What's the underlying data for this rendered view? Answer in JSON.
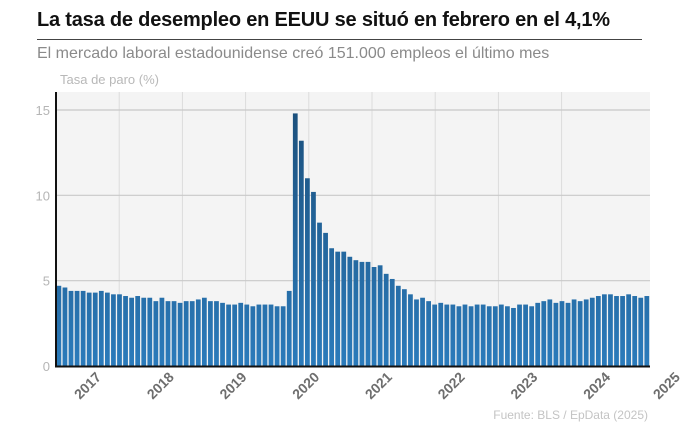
{
  "header": {
    "title": "La tasa de desempleo en EEUU se situó en febrero en el 4,1%",
    "subtitle": "El mercado laboral estadounidense creó 151.000 empleos el último mes",
    "y_axis_label": "Tasa de paro (%)"
  },
  "footer": {
    "source": "Fuente: BLS / EpData (2025)"
  },
  "colors": {
    "bar_top": "#1b4d78",
    "bar_bottom": "#2b7bbb",
    "plot_bg": "#f4f4f4",
    "grid": "#c8c8c8",
    "axis": "#111111"
  },
  "chart_data": {
    "type": "bar",
    "title": "La tasa de desempleo en EEUU se situó en febrero en el 4,1%",
    "subtitle": "El mercado laboral estadounidense creó 151.000 empleos el último mes",
    "xlabel": "",
    "ylabel": "Tasa de paro (%)",
    "ylim": [
      0,
      16
    ],
    "yticks": [
      0,
      5,
      10,
      15
    ],
    "grid": true,
    "legend": "none",
    "x_tick_labels": [
      "2017",
      "2018",
      "2019",
      "2020",
      "2021",
      "2022",
      "2023",
      "2024",
      "2025"
    ],
    "start": "2017-01",
    "end": "2025-02",
    "frequency": "monthly",
    "values": [
      4.7,
      4.6,
      4.4,
      4.4,
      4.4,
      4.3,
      4.3,
      4.4,
      4.3,
      4.2,
      4.2,
      4.1,
      4.0,
      4.1,
      4.0,
      4.0,
      3.8,
      4.0,
      3.8,
      3.8,
      3.7,
      3.8,
      3.8,
      3.9,
      4.0,
      3.8,
      3.8,
      3.7,
      3.6,
      3.6,
      3.7,
      3.6,
      3.5,
      3.6,
      3.6,
      3.6,
      3.5,
      3.5,
      4.4,
      14.8,
      13.2,
      11.0,
      10.2,
      8.4,
      7.8,
      6.9,
      6.7,
      6.7,
      6.4,
      6.2,
      6.1,
      6.1,
      5.8,
      5.9,
      5.4,
      5.1,
      4.7,
      4.5,
      4.2,
      3.9,
      4.0,
      3.8,
      3.6,
      3.7,
      3.6,
      3.6,
      3.5,
      3.6,
      3.5,
      3.6,
      3.6,
      3.5,
      3.5,
      3.6,
      3.5,
      3.4,
      3.6,
      3.6,
      3.5,
      3.7,
      3.8,
      3.9,
      3.7,
      3.8,
      3.7,
      3.9,
      3.8,
      3.9,
      4.0,
      4.1,
      4.2,
      4.2,
      4.1,
      4.1,
      4.2,
      4.1,
      4.0,
      4.1
    ],
    "source": "Fuente: BLS / EpData (2025)"
  }
}
